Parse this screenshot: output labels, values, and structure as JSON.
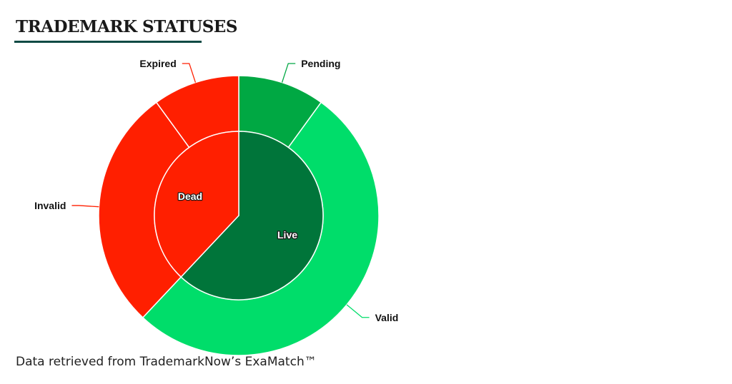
{
  "header": {
    "title": "TRADEMARK STATUSES"
  },
  "footer": {
    "text": "Data retrieved from TrademarkNow’s ExaMatch™"
  },
  "chart_data": {
    "type": "pie",
    "variant": "nested-donut",
    "inner": [
      {
        "name": "Live",
        "value": 0.62,
        "color": "#00753a"
      },
      {
        "name": "Dead",
        "value": 0.38,
        "color": "#ff1f00"
      }
    ],
    "outer": [
      {
        "name": "Pending",
        "value": 0.1,
        "color": "#00a843",
        "parent": "Live"
      },
      {
        "name": "Valid",
        "value": 0.52,
        "color": "#00dd6a",
        "parent": "Live"
      },
      {
        "name": "Invalid",
        "value": 0.28,
        "color": "#ff1f00",
        "parent": "Dead"
      },
      {
        "name": "Expired",
        "value": 0.1,
        "color": "#ff1f00",
        "parent": "Dead"
      }
    ]
  }
}
